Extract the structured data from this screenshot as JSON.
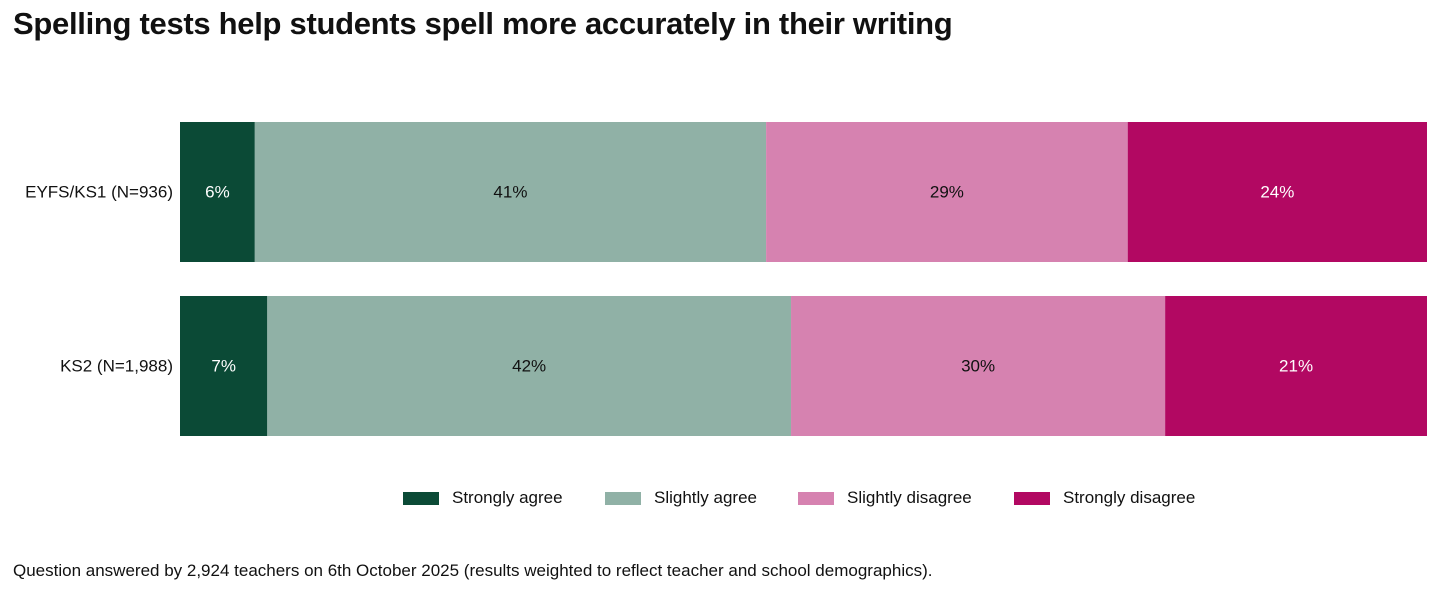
{
  "chart_data": {
    "type": "bar",
    "orientation": "horizontal",
    "stacked": true,
    "normalized_percent": true,
    "title": "Spelling tests help students spell more accurately in their writing",
    "categories": [
      "EYFS/KS1 (N=936)",
      "KS2 (N=1,988)"
    ],
    "series": [
      {
        "name": "Strongly agree",
        "color": "#0b4a36",
        "label_color": "#ffffff",
        "values": [
          6,
          7
        ],
        "labels": [
          "6%",
          "7%"
        ]
      },
      {
        "name": "Slightly agree",
        "color": "#90b1a6",
        "label_color": "#111111",
        "values": [
          41,
          42
        ],
        "labels": [
          "41%",
          "42%"
        ]
      },
      {
        "name": "Slightly disagree",
        "color": "#d682b0",
        "label_color": "#111111",
        "values": [
          29,
          30
        ],
        "labels": [
          "29%",
          "30%"
        ]
      },
      {
        "name": "Strongly disagree",
        "color": "#b20862",
        "label_color": "#ffffff",
        "values": [
          24,
          21
        ],
        "labels": [
          "24%",
          "21%"
        ]
      }
    ],
    "grid": false,
    "legend_position": "bottom-center"
  },
  "footnote": "Question answered by 2,924 teachers on 6th October 2025 (results weighted to reflect teacher and school demographics)."
}
